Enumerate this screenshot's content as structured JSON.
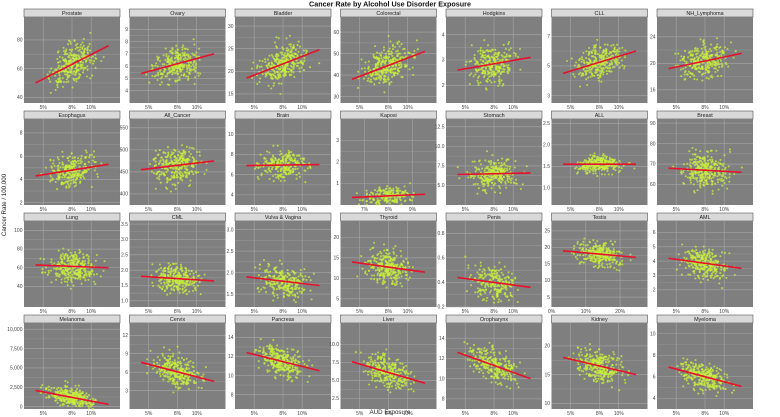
{
  "chart_data": {
    "type": "scatter",
    "title": "Cancer Rate by Alcohol Use Disorder Exposure",
    "xlabel": "AUD Exposure",
    "ylabel": "Cancer Rate / 100,000",
    "grid": true,
    "colors": {
      "points": "#c8f03c",
      "fit_line": "#e8102a",
      "panel": "#7f7f7f",
      "strip": "#d9d9d9"
    },
    "facets": [
      {
        "name": "Prostate",
        "xlim": [
          3,
          13
        ],
        "xticks": [
          5,
          8,
          10
        ],
        "ylim": [
          36,
          96
        ],
        "yticks": [
          40,
          60,
          80
        ],
        "fit": [
          50,
          76
        ],
        "sd": 9,
        "n": 300
      },
      {
        "name": "Ovary",
        "xlim": [
          3,
          13
        ],
        "xticks": [
          5,
          8,
          10
        ],
        "ylim": [
          3,
          10
        ],
        "yticks": [
          4,
          5,
          6,
          7,
          8,
          9
        ],
        "fit": [
          5.4,
          7.0
        ],
        "sd": 0.9,
        "n": 280
      },
      {
        "name": "Bladder",
        "xlim": [
          3,
          13
        ],
        "xticks": [
          5,
          8,
          10
        ],
        "ylim": [
          13,
          32
        ],
        "yticks": [
          15,
          20,
          25,
          30
        ],
        "fit": [
          18.5,
          24.8
        ],
        "sd": 3,
        "n": 300
      },
      {
        "name": "Colorectal",
        "xlim": [
          3,
          13
        ],
        "xticks": [
          5,
          8,
          10
        ],
        "ylim": [
          27,
          67
        ],
        "yticks": [
          30,
          40,
          50,
          60
        ],
        "fit": [
          38,
          51
        ],
        "sd": 6,
        "n": 300
      },
      {
        "name": "Hodgkins",
        "xlim": [
          3,
          13
        ],
        "xticks": [
          5,
          8,
          10
        ],
        "ylim": [
          1.3,
          4.7
        ],
        "yticks": [
          2,
          3,
          4
        ],
        "fit": [
          2.6,
          3.1
        ],
        "sd": 0.5,
        "n": 280
      },
      {
        "name": "CLL",
        "xlim": [
          3,
          13
        ],
        "xticks": [
          5,
          8,
          10
        ],
        "ylim": [
          2.5,
          8.3
        ],
        "yticks": [
          3,
          5,
          7
        ],
        "fit": [
          4.5,
          6.0
        ],
        "sd": 0.8,
        "n": 280
      },
      {
        "name": "NH_Lymphoma",
        "xlim": [
          3,
          13
        ],
        "xticks": [
          5,
          8,
          10
        ],
        "ylim": [
          14,
          27
        ],
        "yticks": [
          16,
          20,
          24
        ],
        "fit": [
          19.2,
          21.5
        ],
        "sd": 1.8,
        "n": 280
      },
      {
        "name": "Esophagus",
        "xlim": [
          3,
          13
        ],
        "xticks": [
          5,
          8,
          10
        ],
        "ylim": [
          1.8,
          9.2
        ],
        "yticks": [
          2,
          4,
          6,
          8
        ],
        "fit": [
          4.3,
          5.3
        ],
        "sd": 1.0,
        "n": 260
      },
      {
        "name": "All_Cancer",
        "xlim": [
          3,
          13
        ],
        "xticks": [
          5,
          8,
          10
        ],
        "ylim": [
          375,
          570
        ],
        "yticks": [
          400,
          450,
          500,
          550
        ],
        "fit": [
          455,
          475
        ],
        "sd": 30,
        "n": 300
      },
      {
        "name": "Brain",
        "xlim": [
          3,
          13
        ],
        "xticks": [
          5,
          8,
          10
        ],
        "ylim": [
          3,
          11.5
        ],
        "yticks": [
          4,
          6,
          8,
          10
        ],
        "fit": [
          6.9,
          7.0
        ],
        "sd": 1.0,
        "n": 260
      },
      {
        "name": "Kaposi",
        "xlim": [
          6,
          10
        ],
        "xticks": [
          7,
          8,
          9
        ],
        "ylim": [
          0,
          4
        ],
        "yticks": [
          1,
          2,
          3
        ],
        "fit": [
          0.35,
          0.5
        ],
        "sd": 0.3,
        "n": 200
      },
      {
        "name": "Stomach",
        "xlim": [
          3,
          13
        ],
        "xticks": [
          5,
          8,
          10
        ],
        "ylim": [
          2.5,
          13.5
        ],
        "yticks": [
          5.0,
          7.5,
          10.0,
          12.5
        ],
        "tickDecimals": 1,
        "fit": [
          6.4,
          6.6
        ],
        "sd": 1.3,
        "n": 280
      },
      {
        "name": "ALL",
        "xlim": [
          3,
          13
        ],
        "xticks": [
          5,
          8,
          10
        ],
        "ylim": [
          0.6,
          2.6
        ],
        "yticks": [
          1.0,
          1.5,
          2.0,
          2.5
        ],
        "tickDecimals": 1,
        "fit": [
          1.55,
          1.55
        ],
        "sd": 0.15,
        "n": 260
      },
      {
        "name": "Breast",
        "xlim": [
          3,
          13
        ],
        "xticks": [
          5,
          8,
          10
        ],
        "ylim": [
          50,
          92
        ],
        "yticks": [
          60,
          70,
          80,
          90
        ],
        "fit": [
          68,
          66
        ],
        "sd": 6,
        "n": 300
      },
      {
        "name": "Lung",
        "xlim": [
          3,
          13
        ],
        "xticks": [
          5,
          8,
          10
        ],
        "ylim": [
          18,
          110
        ],
        "yticks": [
          40,
          60,
          80,
          100
        ],
        "fit": [
          63,
          60
        ],
        "sd": 12,
        "n": 300
      },
      {
        "name": "CML",
        "xlim": [
          3,
          13
        ],
        "xticks": [
          5,
          8,
          10
        ],
        "ylim": [
          0.8,
          3.6
        ],
        "yticks": [
          1.0,
          1.5,
          2.0,
          2.5,
          3.0,
          3.5
        ],
        "tickDecimals": 1,
        "fit": [
          1.8,
          1.65
        ],
        "sd": 0.3,
        "n": 280
      },
      {
        "name": "Vulva & Vagina",
        "xlim": [
          3,
          13
        ],
        "xticks": [
          5,
          8,
          10
        ],
        "ylim": [
          1.2,
          3.2
        ],
        "yticks": [
          1.5,
          2.0,
          2.5,
          3.0
        ],
        "tickDecimals": 1,
        "fit": [
          1.9,
          1.7
        ],
        "sd": 0.25,
        "n": 260
      },
      {
        "name": "Thyroid",
        "xlim": [
          3,
          13
        ],
        "xticks": [
          5,
          8,
          10
        ],
        "ylim": [
          3,
          24
        ],
        "yticks": [
          5,
          10,
          15,
          20
        ],
        "fit": [
          14,
          11.5
        ],
        "sd": 3,
        "n": 280
      },
      {
        "name": "Penis",
        "xlim": [
          3,
          13
        ],
        "xticks": [
          5,
          8,
          10
        ],
        "ylim": [
          0.2,
          0.9
        ],
        "yticks": [
          0.2,
          0.4,
          0.6,
          0.8
        ],
        "tickDecimals": 1,
        "fit": [
          0.44,
          0.36
        ],
        "sd": 0.1,
        "n": 220
      },
      {
        "name": "Testis",
        "xlim": [
          0,
          28
        ],
        "xticks": [
          0,
          10,
          20
        ],
        "ylim": [
          2,
          28
        ],
        "yticks": [
          5,
          10,
          15,
          20,
          25
        ],
        "fit": [
          19,
          17
        ],
        "sd": 2.5,
        "n": 280
      },
      {
        "name": "AML",
        "xlim": [
          3,
          13
        ],
        "xticks": [
          5,
          8,
          10
        ],
        "ylim": [
          0.8,
          6.8
        ],
        "yticks": [
          2,
          3,
          4,
          5,
          6
        ],
        "fit": [
          4.2,
          3.5
        ],
        "sd": 0.7,
        "n": 280
      },
      {
        "name": "Melanoma",
        "xlim": [
          3,
          13
        ],
        "xticks": [
          5,
          8,
          10
        ],
        "ylim": [
          -300,
          10800
        ],
        "yticks": [
          0,
          2500,
          5000,
          7500,
          10000
        ],
        "fit": [
          2100,
          300
        ],
        "sd": 900,
        "n": 300
      },
      {
        "name": "Cervix",
        "xlim": [
          3,
          13
        ],
        "xticks": [
          5,
          8,
          10
        ],
        "ylim": [
          0,
          14
        ],
        "yticks": [
          3,
          6,
          9,
          12
        ],
        "fit": [
          7.6,
          4.5
        ],
        "sd": 1.8,
        "n": 280
      },
      {
        "name": "Pancreas",
        "xlim": [
          3,
          13
        ],
        "xticks": [
          5,
          8,
          10
        ],
        "ylim": [
          6.5,
          15.5
        ],
        "yticks": [
          8,
          10,
          12,
          14
        ],
        "fit": [
          12.4,
          10.5
        ],
        "sd": 1.0,
        "n": 300
      },
      {
        "name": "Liver",
        "xlim": [
          3,
          13
        ],
        "xticks": [
          5,
          8,
          10
        ],
        "ylim": [
          1,
          13
        ],
        "yticks": [
          2.5,
          5.0,
          7.5,
          10.0
        ],
        "tickDecimals": 1,
        "fit": [
          7.6,
          4.6
        ],
        "sd": 1.6,
        "n": 280
      },
      {
        "name": "Oropharynx",
        "xlim": [
          3,
          13
        ],
        "xticks": [
          5,
          8,
          10
        ],
        "ylim": [
          7,
          15.5
        ],
        "yticks": [
          8,
          10,
          12,
          14
        ],
        "fit": [
          12.6,
          10.0
        ],
        "sd": 1.1,
        "n": 280
      },
      {
        "name": "Kidney",
        "xlim": [
          3,
          13
        ],
        "xticks": [
          5,
          8,
          10
        ],
        "ylim": [
          9,
          24
        ],
        "yticks": [
          10,
          15,
          20
        ],
        "fit": [
          18,
          15
        ],
        "sd": 2,
        "n": 300
      },
      {
        "name": "Myeloma",
        "xlim": [
          3,
          13
        ],
        "xticks": [
          5,
          8,
          10
        ],
        "ylim": [
          3,
          11
        ],
        "yticks": [
          4,
          6,
          8,
          10
        ],
        "fit": [
          6.9,
          5.1
        ],
        "sd": 0.9,
        "n": 300
      }
    ]
  }
}
